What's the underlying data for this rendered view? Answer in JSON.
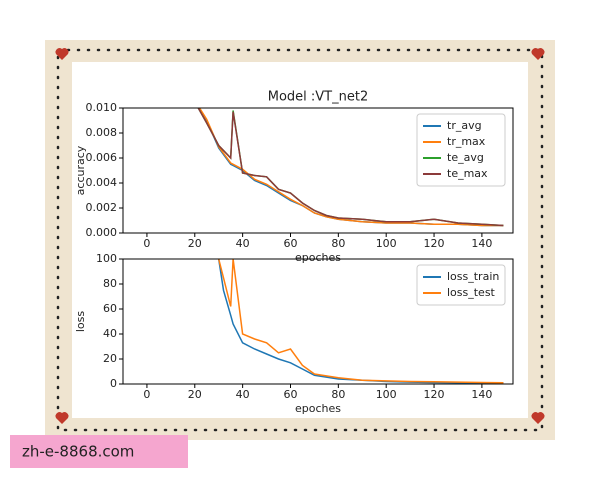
{
  "chart_data": [
    {
      "type": "line",
      "title": "Model :VT_net2",
      "x_label": "epoches",
      "y_label": "accuracy",
      "x": [
        20,
        25,
        30,
        35,
        36,
        40,
        45,
        50,
        55,
        60,
        65,
        70,
        75,
        80,
        90,
        100,
        110,
        120,
        130,
        140,
        149
      ],
      "series": [
        {
          "name": "tr_avg",
          "color": "#1f77b4",
          "values": [
            0.0105,
            0.009,
            0.0068,
            0.0055,
            0.0054,
            0.005,
            0.0042,
            0.0038,
            0.0032,
            0.0026,
            0.0022,
            0.0016,
            0.0013,
            0.0011,
            0.0009,
            0.0008,
            0.0008,
            0.0007,
            0.0007,
            0.0006,
            0.0006
          ]
        },
        {
          "name": "tr_max",
          "color": "#ff7f0e",
          "values": [
            0.0106,
            0.0091,
            0.0069,
            0.0056,
            0.0055,
            0.0051,
            0.0043,
            0.0039,
            0.0033,
            0.0027,
            0.0022,
            0.0016,
            0.0013,
            0.0011,
            0.0009,
            0.0008,
            0.0008,
            0.0007,
            0.0007,
            0.0006,
            0.0006
          ]
        },
        {
          "name": "te_avg",
          "color": "#2ca02c",
          "values": [
            0.0105,
            0.0088,
            0.007,
            0.006,
            0.0098,
            0.0048,
            0.0046,
            0.0045,
            0.0035,
            0.0032,
            0.0024,
            0.0018,
            0.0014,
            0.0012,
            0.0011,
            0.0009,
            0.0009,
            0.0011,
            0.0008,
            0.0007,
            0.0006
          ]
        },
        {
          "name": "te_max",
          "color": "#8c3a3a",
          "values": [
            0.0105,
            0.0088,
            0.007,
            0.006,
            0.0097,
            0.0048,
            0.0046,
            0.0045,
            0.0035,
            0.0032,
            0.0024,
            0.0018,
            0.0014,
            0.0012,
            0.0011,
            0.0009,
            0.0009,
            0.0011,
            0.0008,
            0.0007,
            0.0006
          ]
        }
      ],
      "xlim": [
        -10,
        153
      ],
      "xticks": [
        0,
        20,
        40,
        60,
        80,
        100,
        120,
        140
      ],
      "ylim": [
        0,
        0.01
      ],
      "yticks": [
        {
          "value": 0,
          "label": "0.000"
        },
        {
          "value": 0.002,
          "label": "0.002"
        },
        {
          "value": 0.004,
          "label": "0.004"
        },
        {
          "value": 0.006,
          "label": "0.006"
        },
        {
          "value": 0.008,
          "label": "0.008"
        },
        {
          "value": 0.01,
          "label": "0.010"
        }
      ],
      "legend": "upper right"
    },
    {
      "type": "line",
      "x_label": "epoches",
      "y_label": "loss",
      "x": [
        30,
        32,
        35,
        36,
        40,
        45,
        50,
        55,
        60,
        65,
        70,
        80,
        90,
        100,
        110,
        120,
        130,
        140,
        149
      ],
      "series": [
        {
          "name": "loss_train",
          "color": "#1f77b4",
          "values": [
            100,
            75,
            55,
            48,
            33,
            28,
            24,
            20,
            17,
            12,
            7,
            4,
            3,
            2,
            1.5,
            1.2,
            1,
            1,
            1
          ]
        },
        {
          "name": "loss_test",
          "color": "#ff7f0e",
          "values": [
            100,
            85,
            62,
            100,
            40,
            36,
            33,
            25,
            28,
            15,
            8,
            5,
            3,
            2.5,
            2,
            1.8,
            1.5,
            1.2,
            1
          ]
        }
      ],
      "xlim": [
        -10,
        153
      ],
      "xticks": [
        0,
        20,
        40,
        60,
        80,
        100,
        120,
        140
      ],
      "ylim": [
        0,
        100
      ],
      "yticks": [
        0,
        20,
        40,
        60,
        80,
        100
      ],
      "legend": "upper right"
    }
  ],
  "watermark": "zh-e-8868.com"
}
